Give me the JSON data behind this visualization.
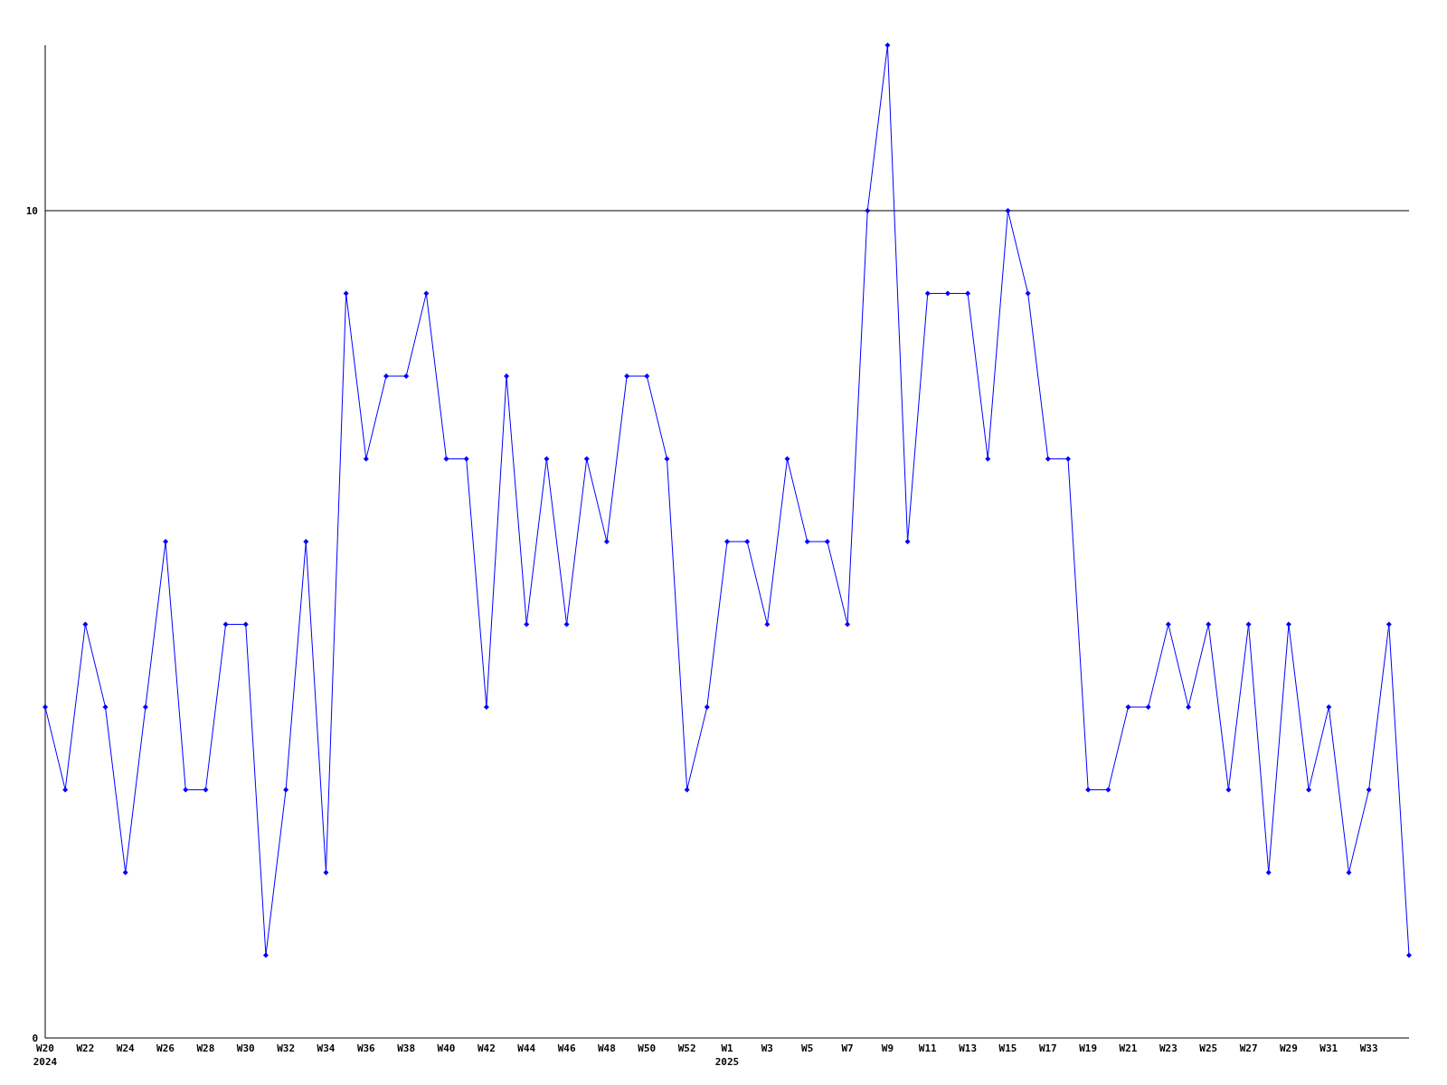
{
  "chart_data": {
    "type": "line",
    "categories": [
      "W20",
      null,
      "W22",
      null,
      "W24",
      null,
      "W26",
      null,
      "W28",
      null,
      "W30",
      null,
      "W32",
      null,
      "W34",
      null,
      "W36",
      null,
      "W38",
      null,
      "W40",
      null,
      "W42",
      null,
      "W44",
      null,
      "W46",
      null,
      "W48",
      null,
      "W50",
      null,
      "W52",
      null,
      "W1",
      null,
      "W3",
      null,
      "W5",
      null,
      "W7",
      null,
      "W9",
      null,
      "W11",
      null,
      "W13",
      null,
      "W15",
      null,
      "W17",
      null,
      "W19",
      null,
      "W21",
      null,
      "W23",
      null,
      "W25",
      null,
      "W27",
      null,
      "W29",
      null,
      "W31",
      null,
      "W33",
      null,
      null
    ],
    "series": [
      {
        "color": "#0000ff",
        "values": [
          4,
          3,
          5,
          4,
          2,
          4,
          6,
          3,
          3,
          5,
          5,
          1,
          3,
          6,
          2,
          9,
          7,
          8,
          8,
          9,
          7,
          7,
          4,
          8,
          5,
          7,
          5,
          7,
          6,
          8,
          8,
          7,
          3,
          4,
          6,
          6,
          5,
          7,
          6,
          6,
          5,
          10,
          12,
          6,
          9,
          9,
          9,
          7,
          10,
          9,
          7,
          7,
          3,
          3,
          4,
          4,
          5,
          4,
          5,
          3,
          5,
          2,
          5,
          3,
          4,
          2,
          3,
          5,
          1
        ]
      }
    ],
    "ylim": [
      0,
      12
    ],
    "yticks": [
      0,
      10
    ],
    "grid": "y",
    "marker": "diamond",
    "line_style": "solid",
    "annotations": [
      "2024",
      "2025"
    ]
  }
}
